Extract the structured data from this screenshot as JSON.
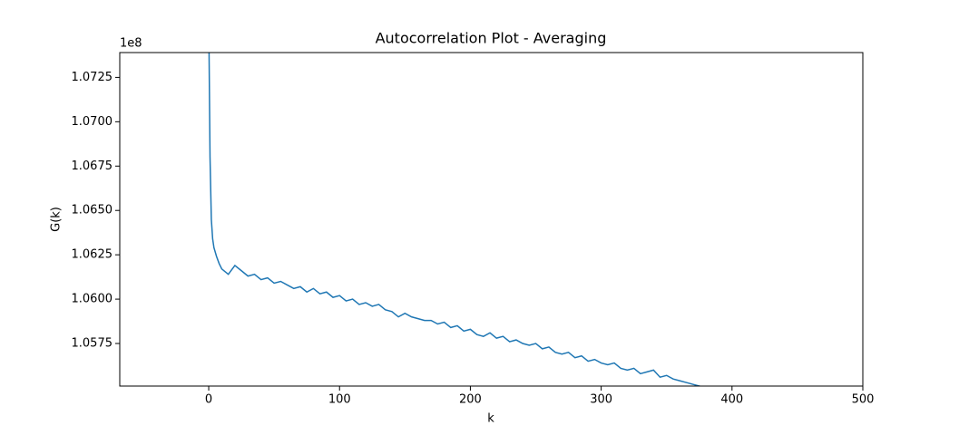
{
  "chart_data": {
    "type": "line",
    "title": "Autocorrelation Plot - Averaging",
    "x_label": "k",
    "y_label": "G(k)",
    "y_offset_label": "1e8",
    "x": [
      0,
      1,
      2,
      3,
      4,
      6,
      8,
      10,
      15,
      20,
      25,
      30,
      35,
      40,
      45,
      50,
      55,
      60,
      65,
      70,
      75,
      80,
      85,
      90,
      95,
      100,
      105,
      110,
      115,
      120,
      125,
      130,
      135,
      140,
      145,
      150,
      155,
      160,
      165,
      170,
      175,
      180,
      185,
      190,
      195,
      200,
      205,
      210,
      215,
      220,
      225,
      230,
      235,
      240,
      245,
      250,
      255,
      260,
      265,
      270,
      275,
      280,
      285,
      290,
      295,
      300,
      305,
      310,
      315,
      320,
      325,
      330,
      335,
      340,
      345,
      350,
      355,
      360,
      365,
      370,
      375,
      380
    ],
    "series": [
      {
        "name": "G(k)",
        "color": "#1f77b4",
        "values": [
          1.076,
          1.068,
          1.0645,
          1.0634,
          1.0629,
          1.0624,
          1.062,
          1.0617,
          1.0614,
          1.0619,
          1.0616,
          1.0613,
          1.0614,
          1.0611,
          1.0612,
          1.0609,
          1.061,
          1.0608,
          1.0606,
          1.0607,
          1.0604,
          1.0606,
          1.0603,
          1.0604,
          1.0601,
          1.0602,
          1.0599,
          1.06,
          1.0597,
          1.0598,
          1.0596,
          1.0597,
          1.0594,
          1.0593,
          1.059,
          1.0592,
          1.059,
          1.0589,
          1.0588,
          1.0588,
          1.0586,
          1.0587,
          1.0584,
          1.0585,
          1.0582,
          1.0583,
          1.058,
          1.0579,
          1.0581,
          1.0578,
          1.0579,
          1.0576,
          1.0577,
          1.0575,
          1.0574,
          1.0575,
          1.0572,
          1.0573,
          1.057,
          1.0569,
          1.057,
          1.0567,
          1.0568,
          1.0565,
          1.0566,
          1.0564,
          1.0563,
          1.0564,
          1.0561,
          1.056,
          1.0561,
          1.0558,
          1.0559,
          1.056,
          1.0556,
          1.0557,
          1.0555,
          1.0554,
          1.0553,
          1.0552,
          1.0551,
          1.055
        ]
      }
    ],
    "xlim": [
      -68,
      500
    ],
    "xticks": [
      0,
      100,
      200,
      300,
      400,
      500
    ],
    "ylim": [
      1.0551,
      1.0739
    ],
    "yticks": [
      1.0575,
      {
        "value": 1.06,
        "label": "1.0600"
      },
      1.0625,
      {
        "value": 1.065,
        "label": "1.0650"
      },
      1.0675,
      {
        "value": 1.07,
        "label": "1.0700"
      },
      1.0725
    ]
  }
}
